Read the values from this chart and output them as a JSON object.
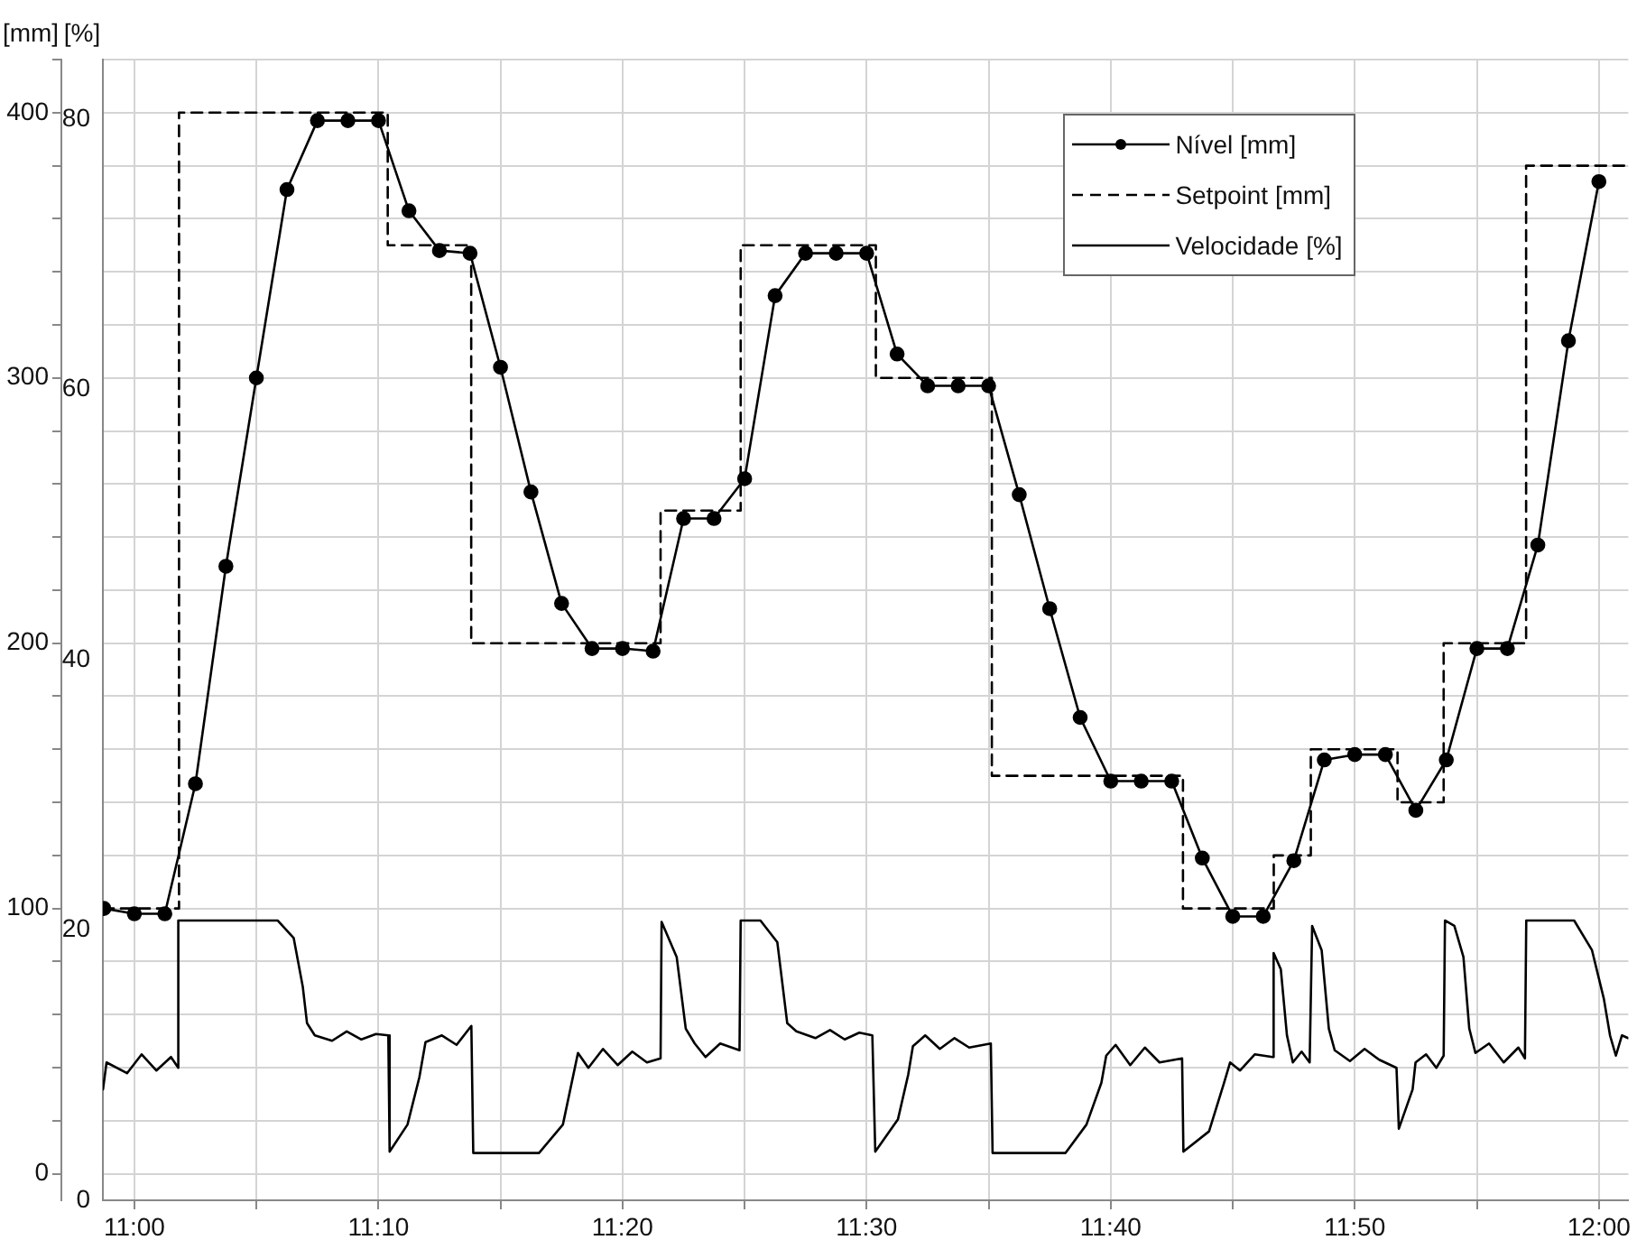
{
  "chart_data": {
    "type": "line",
    "ylabel": "[mm]",
    "y2label": "[%]",
    "xlim": [
      10.9785,
      12.0201
    ],
    "xticks": [
      {
        "value": 11,
        "label": "11:00"
      },
      {
        "value": 11.0833,
        "label": null
      },
      {
        "value": 11.1667,
        "label": "11:10"
      },
      {
        "value": 11.25,
        "label": null
      },
      {
        "value": 11.3333,
        "label": "11:20"
      },
      {
        "value": 11.4167,
        "label": null
      },
      {
        "value": 11.5,
        "label": "11:30"
      },
      {
        "value": 11.5833,
        "label": null
      },
      {
        "value": 11.6667,
        "label": "11:40"
      },
      {
        "value": 11.75,
        "label": null
      },
      {
        "value": 11.8333,
        "label": "11:50"
      },
      {
        "value": 11.9167,
        "label": null
      },
      {
        "value": 12,
        "label": "12:00"
      }
    ],
    "ylim": [
      -10,
      420
    ],
    "yticks": [
      0,
      {
        "value": 20,
        "label": null
      },
      {
        "value": 40,
        "label": null
      },
      {
        "value": 60,
        "label": null
      },
      {
        "value": 80,
        "label": null
      },
      100,
      {
        "value": 120,
        "label": null
      },
      {
        "value": 140,
        "label": null
      },
      {
        "value": 160,
        "label": null
      },
      {
        "value": 180,
        "label": null
      },
      200,
      {
        "value": 220,
        "label": null
      },
      {
        "value": 240,
        "label": null
      },
      {
        "value": 260,
        "label": null
      },
      {
        "value": 280,
        "label": null
      },
      300,
      {
        "value": 320,
        "label": null
      },
      {
        "value": 340,
        "label": null
      },
      {
        "value": 360,
        "label": null
      },
      {
        "value": 380,
        "label": null
      },
      400,
      {
        "value": 420,
        "label": null
      }
    ],
    "y2lim": [
      0,
      84.4
    ],
    "y2ticks": [
      0,
      20,
      40,
      60,
      80
    ],
    "grid": true,
    "legend": "top right",
    "series": [
      {
        "name": "Nível [mm]",
        "type": "line",
        "marker": "circle",
        "line_style": "solid",
        "color": "#000000",
        "x": [
          10.9792,
          11,
          11.0208,
          11.0417,
          11.0625,
          11.0833,
          11.1042,
          11.125,
          11.1458,
          11.1667,
          11.1875,
          11.2083,
          11.2292,
          11.25,
          11.2708,
          11.2917,
          11.3125,
          11.3333,
          11.3542,
          11.375,
          11.3958,
          11.4167,
          11.4375,
          11.4583,
          11.4792,
          11.5,
          11.5208,
          11.5417,
          11.5625,
          11.5833,
          11.6042,
          11.625,
          11.6458,
          11.6667,
          11.6875,
          11.7083,
          11.7292,
          11.75,
          11.7708,
          11.7917,
          11.8125,
          11.8333,
          11.8542,
          11.875,
          11.8958,
          11.9167,
          11.9375,
          11.9583,
          11.9792,
          12
        ],
        "values": [
          100,
          98,
          98,
          147,
          229,
          300,
          371,
          397,
          397,
          397,
          363,
          348,
          347,
          304,
          257,
          215,
          198,
          198,
          197,
          247,
          247,
          262,
          331,
          347,
          347,
          347,
          309,
          297,
          297,
          297,
          256,
          213,
          172,
          148,
          148,
          148,
          119,
          97,
          97,
          118,
          156,
          158,
          158,
          137,
          156,
          198,
          198,
          237,
          314,
          374
        ]
      },
      {
        "name": "Setpoint [mm]",
        "type": "step",
        "marker": "none",
        "line_style": "dashed",
        "color": "#000000",
        "x": [
          10.9785,
          11.0305,
          11.173,
          11.23,
          11.3593,
          11.414,
          11.5063,
          11.5855,
          11.716,
          11.778,
          11.8033,
          11.8625,
          11.894,
          11.9503,
          12.0201
        ],
        "values": [
          100,
          400,
          350,
          200,
          250,
          350,
          300,
          150,
          100,
          120,
          160,
          140,
          200,
          380,
          380
        ]
      },
      {
        "name": "Velocidade [%]",
        "type": "line",
        "axis": "y2",
        "marker": "none",
        "line_style": "solid",
        "color": "#000000",
        "x": [
          10.9786,
          10.981,
          10.995,
          11.005,
          11.015,
          11.025,
          11.03,
          11.03,
          11.0978,
          11.1088,
          11.115,
          11.1179,
          11.1232,
          11.135,
          11.145,
          11.155,
          11.165,
          11.1734,
          11.1743,
          11.1865,
          11.1946,
          11.1988,
          11.21,
          11.22,
          11.2301,
          11.2314,
          11.2763,
          11.2926,
          11.3029,
          11.31,
          11.32,
          11.33,
          11.34,
          11.35,
          11.3593,
          11.36,
          11.3703,
          11.3765,
          11.3826,
          11.39,
          11.4,
          11.4132,
          11.414,
          11.4275,
          11.439,
          11.4458,
          11.452,
          11.465,
          11.475,
          11.485,
          11.495,
          11.5039,
          11.5059,
          11.5214,
          11.5284,
          11.5316,
          11.54,
          11.55,
          11.56,
          11.57,
          11.5848,
          11.586,
          11.6358,
          11.6501,
          11.6603,
          11.6636,
          11.67,
          11.68,
          11.69,
          11.7,
          11.7154,
          11.7163,
          11.7338,
          11.7441,
          11.7482,
          11.755,
          11.765,
          11.7772,
          11.7779,
          11.7828,
          11.787,
          11.791,
          11.797,
          11.8025,
          11.8042,
          11.8107,
          11.8156,
          11.8196,
          11.83,
          11.84,
          11.85,
          11.8618,
          11.8634,
          11.8728,
          11.8748,
          11.882,
          11.889,
          11.894,
          11.8949,
          11.9013,
          11.9075,
          11.9115,
          11.9157,
          11.925,
          11.935,
          11.945,
          11.9495,
          11.9504,
          11.9831,
          11.9953,
          12.0034,
          12.0076,
          12.0116,
          12.0157,
          12.0199
        ],
        "values": [
          8.2,
          10.2,
          9.4,
          10.8,
          9.6,
          10.6,
          9.8,
          20.7,
          20.7,
          19.4,
          15.8,
          13.1,
          12.2,
          11.8,
          12.5,
          11.9,
          12.3,
          12.2,
          3.6,
          5.6,
          9.1,
          11.7,
          12.2,
          11.5,
          12.9,
          3.5,
          3.5,
          5.6,
          10.9,
          9.8,
          11.2,
          10.0,
          11.0,
          10.2,
          10.5,
          20.6,
          18,
          12.7,
          11.6,
          10.6,
          11.6,
          11.1,
          20.7,
          20.7,
          19.1,
          13.1,
          12.5,
          12.0,
          12.6,
          11.9,
          12.4,
          12.2,
          3.6,
          6,
          9.3,
          11.4,
          12.2,
          11.2,
          12.0,
          11.3,
          11.6,
          3.5,
          3.5,
          5.6,
          8.7,
          10.7,
          11.5,
          10.0,
          11.3,
          10.2,
          10.5,
          3.6,
          5.1,
          8.7,
          10.2,
          9.6,
          10.8,
          10.6,
          18.3,
          17.1,
          12.2,
          10.2,
          11.0,
          10.2,
          20.3,
          18.5,
          12.7,
          11.1,
          10.3,
          11.2,
          10.4,
          9.8,
          5.3,
          8.2,
          10.2,
          10.8,
          9.8,
          10.7,
          20.7,
          20.3,
          18,
          12.7,
          10.9,
          11.6,
          10.2,
          11.3,
          10.5,
          20.7,
          20.7,
          18.5,
          14.9,
          12.2,
          10.7,
          12.2,
          12
        ]
      }
    ]
  }
}
